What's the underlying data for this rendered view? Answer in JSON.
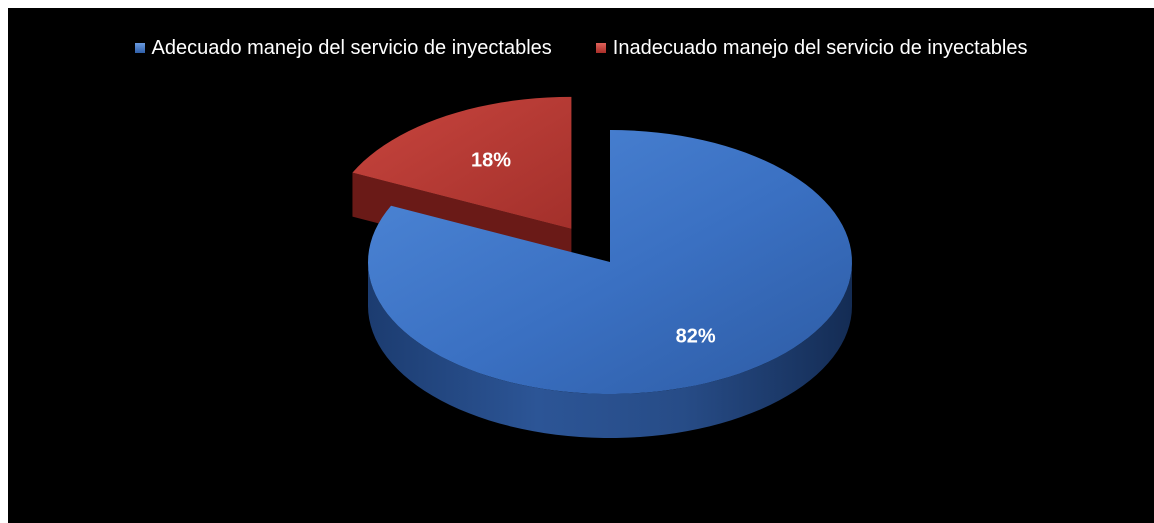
{
  "chart_data": {
    "type": "pie",
    "title": "",
    "categories": [
      "Adecuado manejo del servicio de inyectables",
      "Inadecuado manejo del servicio de inyectables"
    ],
    "values": [
      82,
      18
    ],
    "value_labels": [
      "82%",
      "18%"
    ],
    "colors": [
      "#3b73c4",
      "#c23c36"
    ],
    "legend_position": "top",
    "style": "3d-exploded"
  }
}
